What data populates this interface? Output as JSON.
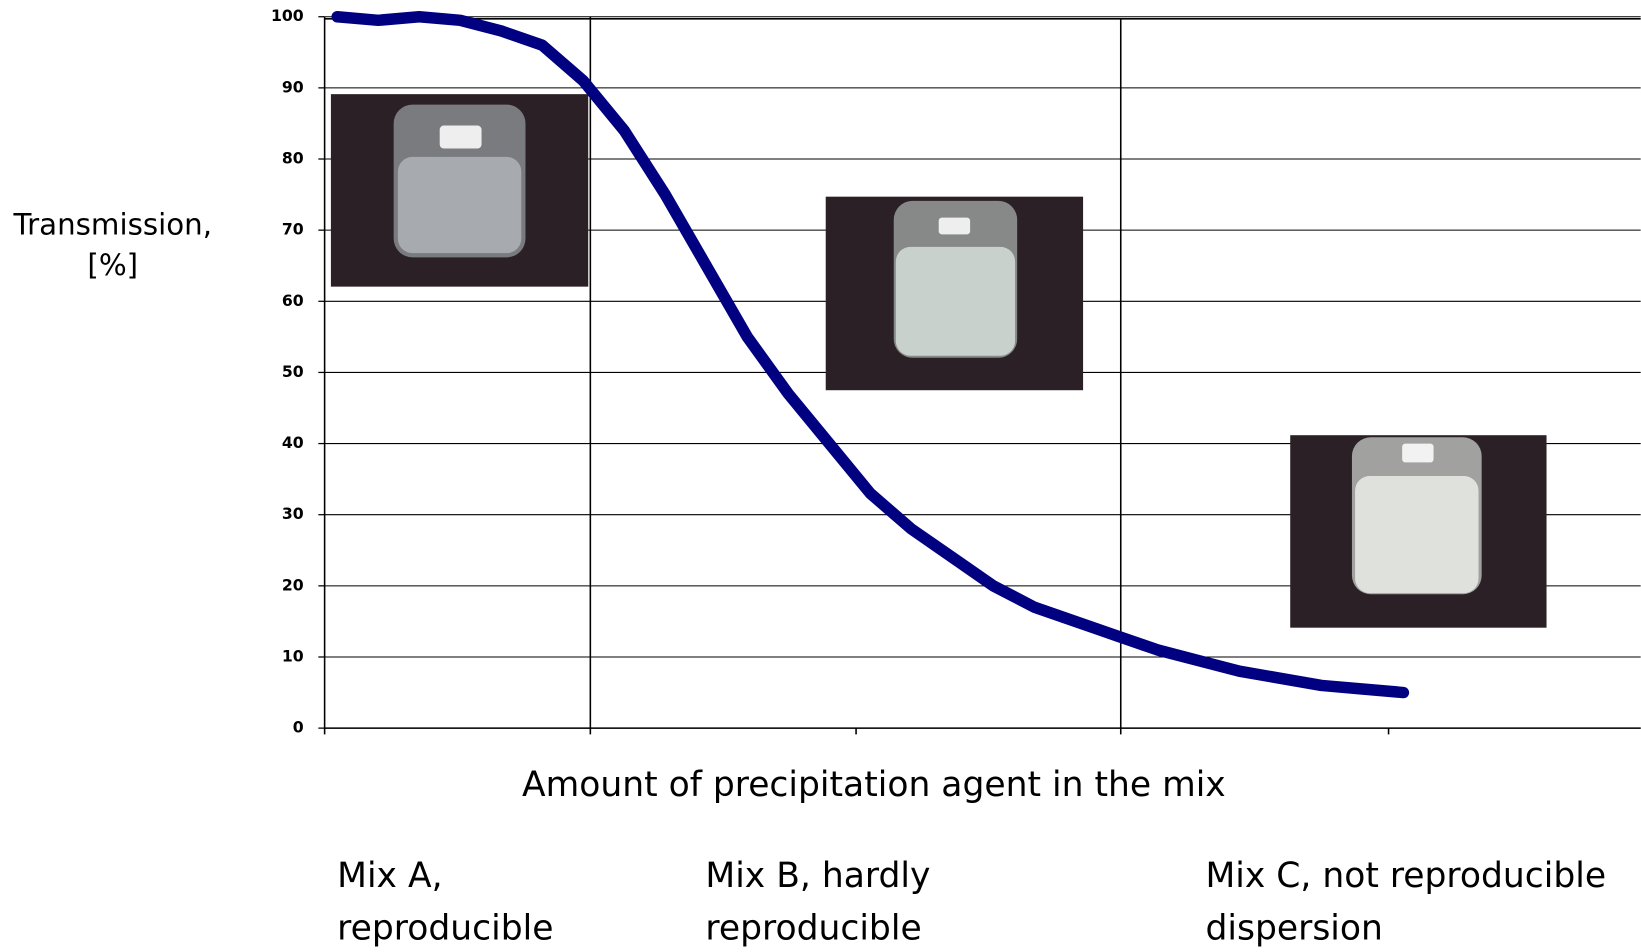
{
  "chart_data": {
    "type": "line",
    "ylabel": "Transmission, [%]",
    "xlabel": "Amount of precipitation agent in the mix",
    "annotations": [
      "Mix A, reproducible",
      "Mix B, hardly reproducible",
      "Mix C, not reproducible dispersion"
    ],
    "values": [
      100,
      99.5,
      100,
      99.5,
      98,
      96,
      91,
      84,
      75,
      65,
      55,
      47,
      40,
      33,
      28,
      24,
      20,
      17,
      15,
      13,
      11,
      9.5,
      8,
      7,
      6,
      5.5,
      5
    ],
    "color": "#000080",
    "ylim": [
      0,
      100
    ],
    "yticks": [
      0,
      10,
      20,
      30,
      40,
      50,
      60,
      70,
      80,
      90,
      100
    ],
    "grid": true
  }
}
